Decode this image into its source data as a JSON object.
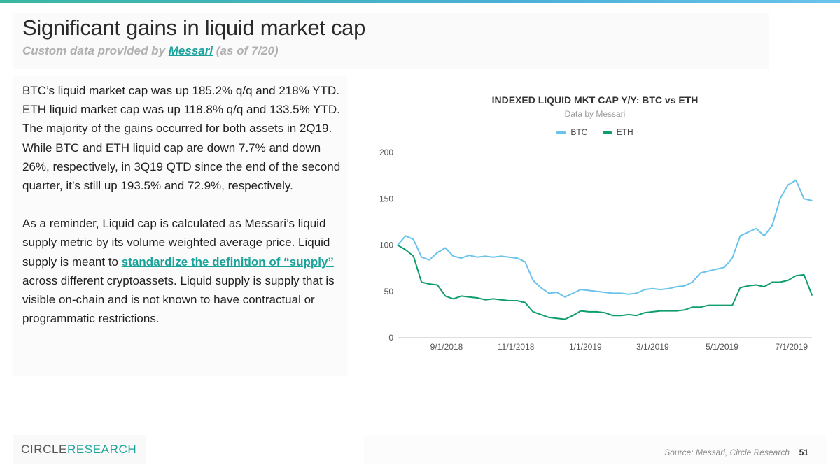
{
  "slide": {
    "title": "Significant gains in liquid market cap",
    "subtitle_prefix": "Custom data provided by ",
    "subtitle_link": "Messari",
    "subtitle_suffix": " (as of 7/20)"
  },
  "body": {
    "paragraph1": "BTC’s liquid market cap was up 185.2% q/q and 218% YTD. ETH liquid market cap was up 118.8% q/q and 133.5% YTD. The majority of the gains occurred for both assets in 2Q19. While BTC and ETH liquid cap are down 7.7% and down 26%, respectively, in 3Q19 QTD since the end of the second quarter, it’s still up 193.5% and 72.9%, respectively.",
    "paragraph2_before": "As a reminder, Liquid cap is calculated as Messari’s liquid supply metric by its volume weighted average price. Liquid supply is meant to ",
    "paragraph2_link": "standardize the definition of “supply”",
    "paragraph2_after": " across different cryptoassets. Liquid supply is supply that is visible on-chain and is not known to have contractual or programmatic restrictions."
  },
  "footer": {
    "brand_part1": "CIRCLE",
    "brand_part2": "RESEARCH",
    "source": "Source: Messari, Circle Research",
    "page_number": "51"
  },
  "colors": {
    "btc": "#6ac3ea",
    "eth": "#0f9d6e",
    "accent": "#1aa39a"
  },
  "chart_data": {
    "type": "line",
    "title": "INDEXED LIQUID MKT CAP Y/Y: BTC vs ETH",
    "subtitle": "Data by Messari",
    "legend_position": "top",
    "ylim": [
      0,
      200
    ],
    "yticks": [
      "0",
      "50",
      "100",
      "150",
      "200"
    ],
    "xticks": [
      "9/1/2018",
      "11/1/2018",
      "1/1/2019",
      "3/1/2019",
      "5/1/2019",
      "7/1/2019"
    ],
    "grid": false,
    "x": [
      "2018-07-20",
      "2018-07-27",
      "2018-08-03",
      "2018-08-10",
      "2018-08-17",
      "2018-08-24",
      "2018-08-31",
      "2018-09-07",
      "2018-09-14",
      "2018-09-21",
      "2018-09-28",
      "2018-10-05",
      "2018-10-12",
      "2018-10-19",
      "2018-10-26",
      "2018-11-02",
      "2018-11-09",
      "2018-11-16",
      "2018-11-23",
      "2018-11-30",
      "2018-12-07",
      "2018-12-14",
      "2018-12-21",
      "2018-12-28",
      "2019-01-04",
      "2019-01-11",
      "2019-01-18",
      "2019-01-25",
      "2019-02-01",
      "2019-02-08",
      "2019-02-15",
      "2019-02-22",
      "2019-03-01",
      "2019-03-08",
      "2019-03-15",
      "2019-03-22",
      "2019-03-29",
      "2019-04-05",
      "2019-04-12",
      "2019-04-19",
      "2019-04-26",
      "2019-05-03",
      "2019-05-10",
      "2019-05-17",
      "2019-05-24",
      "2019-05-31",
      "2019-06-07",
      "2019-06-14",
      "2019-06-21",
      "2019-06-28",
      "2019-07-05",
      "2019-07-12",
      "2019-07-19"
    ],
    "series": [
      {
        "name": "BTC",
        "values": [
          100,
          110,
          106,
          87,
          84,
          92,
          97,
          88,
          86,
          89,
          87,
          88,
          87,
          88,
          87,
          86,
          82,
          62,
          54,
          48,
          49,
          44,
          48,
          52,
          51,
          50,
          49,
          48,
          48,
          47,
          48,
          52,
          53,
          52,
          53,
          55,
          56,
          60,
          70,
          72,
          74,
          76,
          86,
          110,
          114,
          118,
          110,
          121,
          150,
          165,
          170,
          150,
          148
        ]
      },
      {
        "name": "ETH",
        "values": [
          100,
          95,
          88,
          60,
          58,
          57,
          45,
          42,
          45,
          44,
          43,
          41,
          42,
          41,
          40,
          40,
          38,
          28,
          25,
          22,
          21,
          20,
          24,
          29,
          28,
          28,
          27,
          24,
          24,
          25,
          24,
          27,
          28,
          29,
          29,
          29,
          30,
          33,
          33,
          35,
          35,
          35,
          35,
          54,
          56,
          57,
          55,
          60,
          60,
          62,
          67,
          68,
          46
        ]
      }
    ]
  }
}
